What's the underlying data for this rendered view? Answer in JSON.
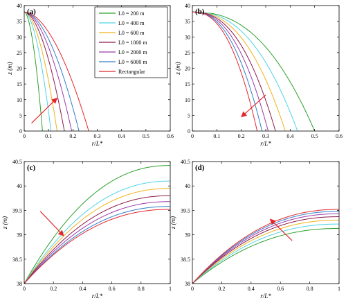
{
  "figure": {
    "series_colors": [
      "#2ca02c",
      "#4fd3e6",
      "#f1b21c",
      "#8b1a4a",
      "#9b3aa8",
      "#2f7fc8",
      "#e4262b"
    ],
    "arrow_color": "#e4262b"
  },
  "legend": {
    "entries": [
      "L0 = 200 m",
      "L0 = 400 m",
      "L0 = 600 m",
      "L0 = 1000 m",
      "L0 = 2000 m",
      "L0 = 6000 m",
      "Rectangular"
    ]
  },
  "chart_data": [
    {
      "panel": "(a)",
      "type": "line",
      "xlabel": "r/L*",
      "ylabel": "z (m)",
      "xlim": [
        0,
        0.6
      ],
      "ylim": [
        0,
        40
      ],
      "xticks": [
        "0",
        "0.1",
        "0.2",
        "0.3",
        "0.4",
        "0.5",
        "0.6"
      ],
      "yticks": [
        "0",
        "5",
        "10",
        "15",
        "20",
        "25",
        "30",
        "35",
        "40"
      ],
      "y_top": 38,
      "exponent": 0.55,
      "series": [
        {
          "name": "L0 = 200 m",
          "x_at_base": 0.075
        },
        {
          "name": "L0 = 400 m",
          "x_at_base": 0.11
        },
        {
          "name": "L0 = 600 m",
          "x_at_base": 0.135
        },
        {
          "name": "L0 = 1000 m",
          "x_at_base": 0.165
        },
        {
          "name": "L0 = 2000 m",
          "x_at_base": 0.195
        },
        {
          "name": "L0 = 6000 m",
          "x_at_base": 0.225
        },
        {
          "name": "Rectangular",
          "x_at_base": 0.265
        }
      ],
      "arrow": {
        "from": [
          0.03,
          2.5
        ],
        "to": [
          0.135,
          10.5
        ]
      }
    },
    {
      "panel": "(b)",
      "type": "line",
      "xlabel": "r/L*",
      "ylabel": "z (m)",
      "xlim": [
        0,
        0.6
      ],
      "ylim": [
        0,
        40
      ],
      "xticks": [
        "0",
        "0.1",
        "0.2",
        "0.3",
        "0.4",
        "0.5",
        "0.6"
      ],
      "yticks": [
        "0",
        "5",
        "10",
        "15",
        "20",
        "25",
        "30",
        "35",
        "40"
      ],
      "y_top": 38,
      "exponent": 0.42,
      "series": [
        {
          "name": "L0 = 200 m",
          "x_at_base": 0.5
        },
        {
          "name": "L0 = 400 m",
          "x_at_base": 0.43
        },
        {
          "name": "L0 = 600 m",
          "x_at_base": 0.38
        },
        {
          "name": "L0 = 1000 m",
          "x_at_base": 0.34
        },
        {
          "name": "L0 = 2000 m",
          "x_at_base": 0.31
        },
        {
          "name": "L0 = 6000 m",
          "x_at_base": 0.285
        },
        {
          "name": "Rectangular",
          "x_at_base": 0.265
        }
      ],
      "arrow": {
        "from": [
          0.3,
          11.5
        ],
        "to": [
          0.2,
          4.5
        ]
      }
    },
    {
      "panel": "(c)",
      "type": "line",
      "xlabel": "r/L*",
      "ylabel": "z (m)",
      "xlim": [
        0,
        1
      ],
      "ylim": [
        38,
        40.5
      ],
      "xticks": [
        "0",
        "0.2",
        "0.4",
        "0.6",
        "0.8",
        "1"
      ],
      "yticks": [
        "38",
        "38.5",
        "39",
        "39.5",
        "40",
        "40.5"
      ],
      "y_base": 38,
      "series": [
        {
          "name": "L0 = 200 m",
          "z_at_1": 40.42
        },
        {
          "name": "L0 = 400 m",
          "z_at_1": 40.1
        },
        {
          "name": "L0 = 600 m",
          "z_at_1": 39.95
        },
        {
          "name": "L0 = 1000 m",
          "z_at_1": 39.8
        },
        {
          "name": "L0 = 2000 m",
          "z_at_1": 39.68
        },
        {
          "name": "L0 = 6000 m",
          "z_at_1": 39.58
        },
        {
          "name": "Rectangular",
          "z_at_1": 39.52
        }
      ],
      "arrow": {
        "from": [
          0.11,
          39.48
        ],
        "to": [
          0.27,
          38.98
        ]
      }
    },
    {
      "panel": "(d)",
      "type": "line",
      "xlabel": "r/L*",
      "ylabel": "z (m)",
      "xlim": [
        0,
        1
      ],
      "ylim": [
        38,
        40.5
      ],
      "xticks": [
        "0",
        "0.2",
        "0.4",
        "0.6",
        "0.8",
        "1"
      ],
      "yticks": [
        "38",
        "38.5",
        "39",
        "39.5",
        "40",
        "40.5"
      ],
      "y_base": 38,
      "series": [
        {
          "name": "L0 = 200 m",
          "z_at_1": 39.13
        },
        {
          "name": "L0 = 400 m",
          "z_at_1": 39.22
        },
        {
          "name": "L0 = 600 m",
          "z_at_1": 39.3
        },
        {
          "name": "L0 = 1000 m",
          "z_at_1": 39.37
        },
        {
          "name": "L0 = 2000 m",
          "z_at_1": 39.43
        },
        {
          "name": "L0 = 6000 m",
          "z_at_1": 39.48
        },
        {
          "name": "Rectangular",
          "z_at_1": 39.52
        }
      ],
      "arrow": {
        "from": [
          0.68,
          38.88
        ],
        "to": [
          0.53,
          39.32
        ]
      }
    }
  ]
}
